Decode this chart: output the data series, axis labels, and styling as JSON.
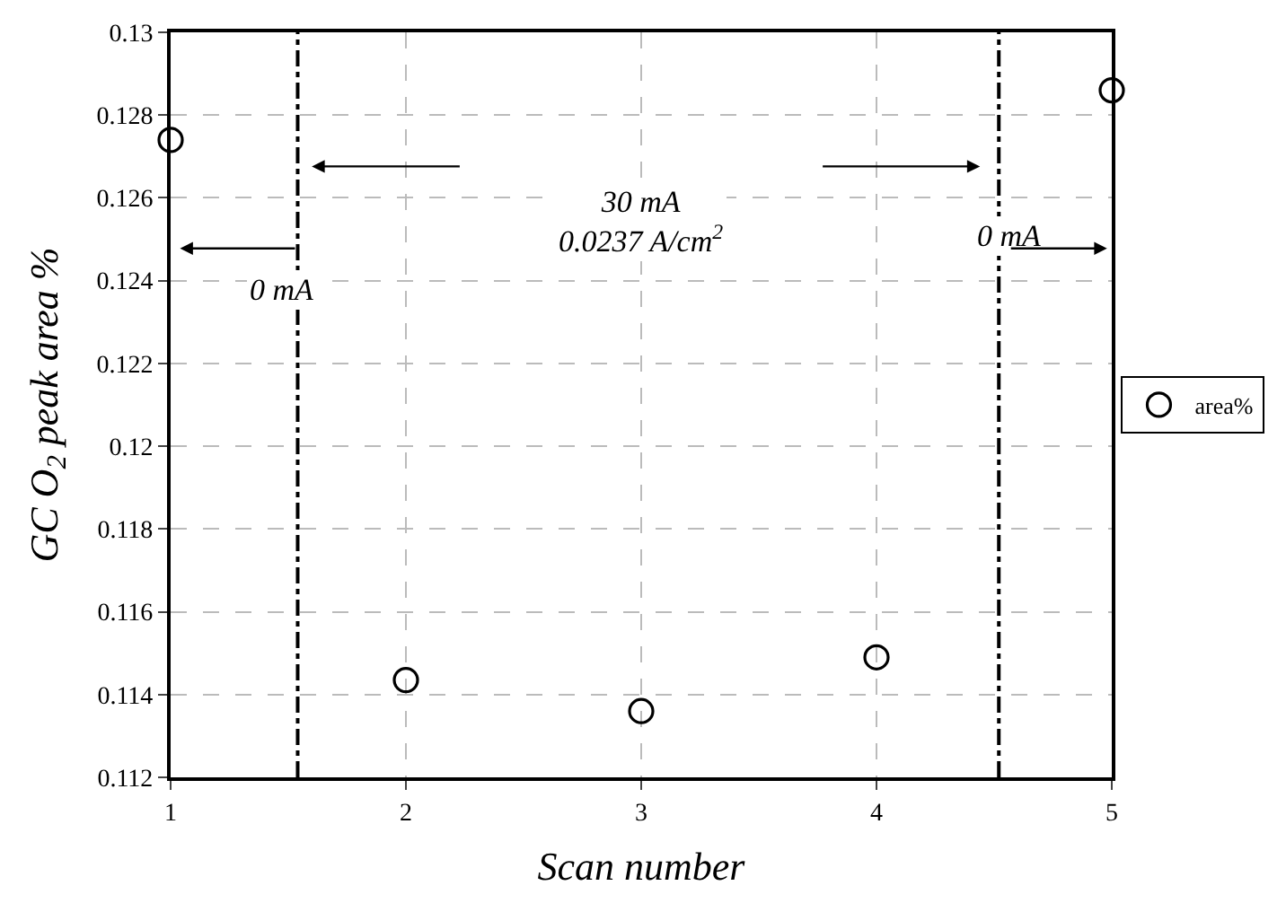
{
  "chart_data": {
    "type": "scatter",
    "xlabel": "Scan number",
    "ylabel": "GC O$_{2}$ peak area %",
    "x": [
      1,
      2,
      3,
      4,
      5
    ],
    "series": [
      {
        "name": "area%",
        "color": "#000000",
        "values": [
          0.1274,
          0.11435,
          0.1136,
          0.1149,
          0.1286
        ]
      }
    ],
    "marker": "circle",
    "xlim": [
      1,
      5
    ],
    "xticks": [
      1,
      2,
      3,
      4,
      5
    ],
    "ylim": [
      0.112,
      0.13
    ],
    "yticks": [
      0.112,
      0.114,
      0.116,
      0.118,
      0.12,
      0.122,
      0.124,
      0.126,
      0.128,
      0.13
    ],
    "grid": true,
    "legend": "right",
    "ref_lines": [
      {
        "axis": "x",
        "value": 1.54,
        "color": "#000000",
        "line_style": "dashdot"
      },
      {
        "axis": "x",
        "value": 4.52,
        "color": "#000000",
        "line_style": "dashdot"
      }
    ],
    "annotations": [
      "30 mA\n0.0237 A/cm$^{2}$",
      "0 mA",
      "0 mA"
    ]
  }
}
